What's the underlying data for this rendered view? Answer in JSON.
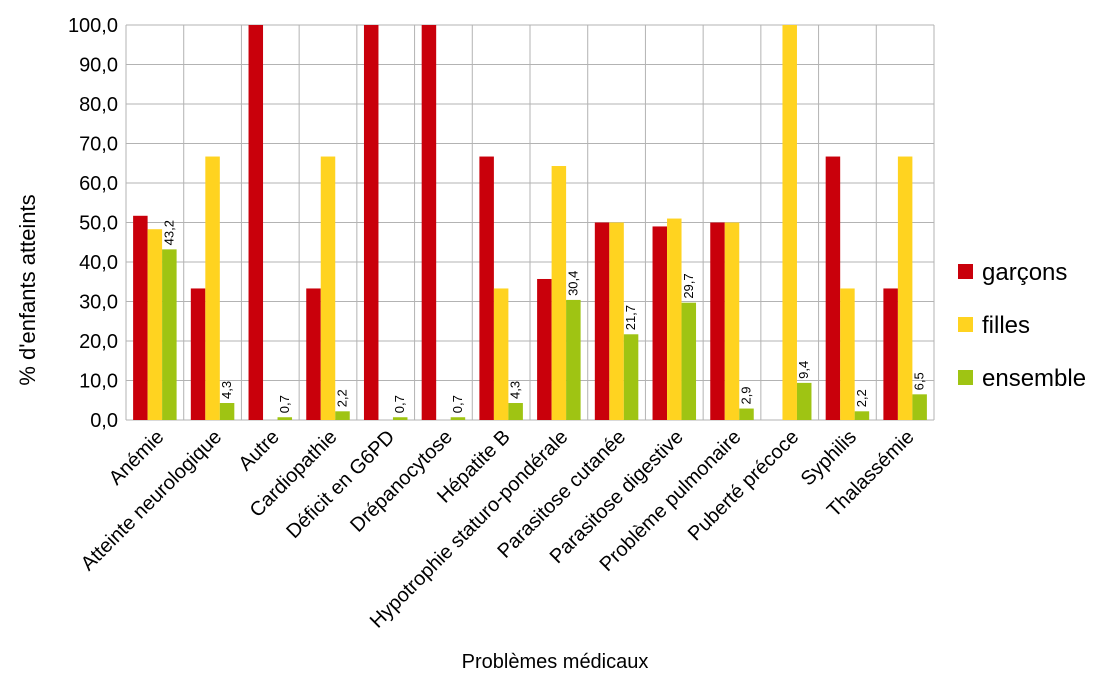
{
  "chart_data": {
    "type": "bar",
    "title": "",
    "xlabel": "Problèmes médicaux",
    "ylabel": "% d'enfants atteints",
    "ylim": [
      0,
      100
    ],
    "yticks": [
      "0,0",
      "10,0",
      "20,0",
      "30,0",
      "40,0",
      "50,0",
      "60,0",
      "70,0",
      "80,0",
      "90,0",
      "100,0"
    ],
    "grid": true,
    "legend_position": "right",
    "categories": [
      "Anémie",
      "Atteinte neurologique",
      "Autre",
      "Cardiopathie",
      "Déficit en G6PD",
      "Drépanocytose",
      "Hépatite B",
      "Hypotrophie staturo-pondérale",
      "Parasitose cutanée",
      "Parasitose digestive",
      "Problème pulmonaire",
      "Puberté précoce",
      "Syphilis",
      "Thalassémie"
    ],
    "series": [
      {
        "name": "garçons",
        "color": "#c9000b",
        "values": [
          51.7,
          33.3,
          100,
          33.3,
          100,
          100,
          66.7,
          35.7,
          50,
          49,
          50,
          0,
          66.7,
          33.3
        ]
      },
      {
        "name": "filles",
        "color": "#ffd320",
        "values": [
          48.3,
          66.7,
          0,
          66.7,
          0,
          0,
          33.3,
          64.3,
          50,
          51,
          50,
          100,
          33.3,
          66.7
        ]
      },
      {
        "name": "ensemble",
        "color": "#9fc413",
        "values": [
          43.2,
          4.3,
          0.7,
          2.2,
          0.7,
          0.7,
          4.3,
          30.4,
          21.7,
          29.7,
          2.9,
          9.4,
          2.2,
          6.5
        ]
      }
    ],
    "data_labels": {
      "series": "ensemble",
      "values": [
        "43,2",
        "4,3",
        "0,7",
        "2,2",
        "0,7",
        "0,7",
        "4,3",
        "30,4",
        "21,7",
        "29,7",
        "2,9",
        "9,4",
        "2,2",
        "6,5"
      ]
    }
  }
}
